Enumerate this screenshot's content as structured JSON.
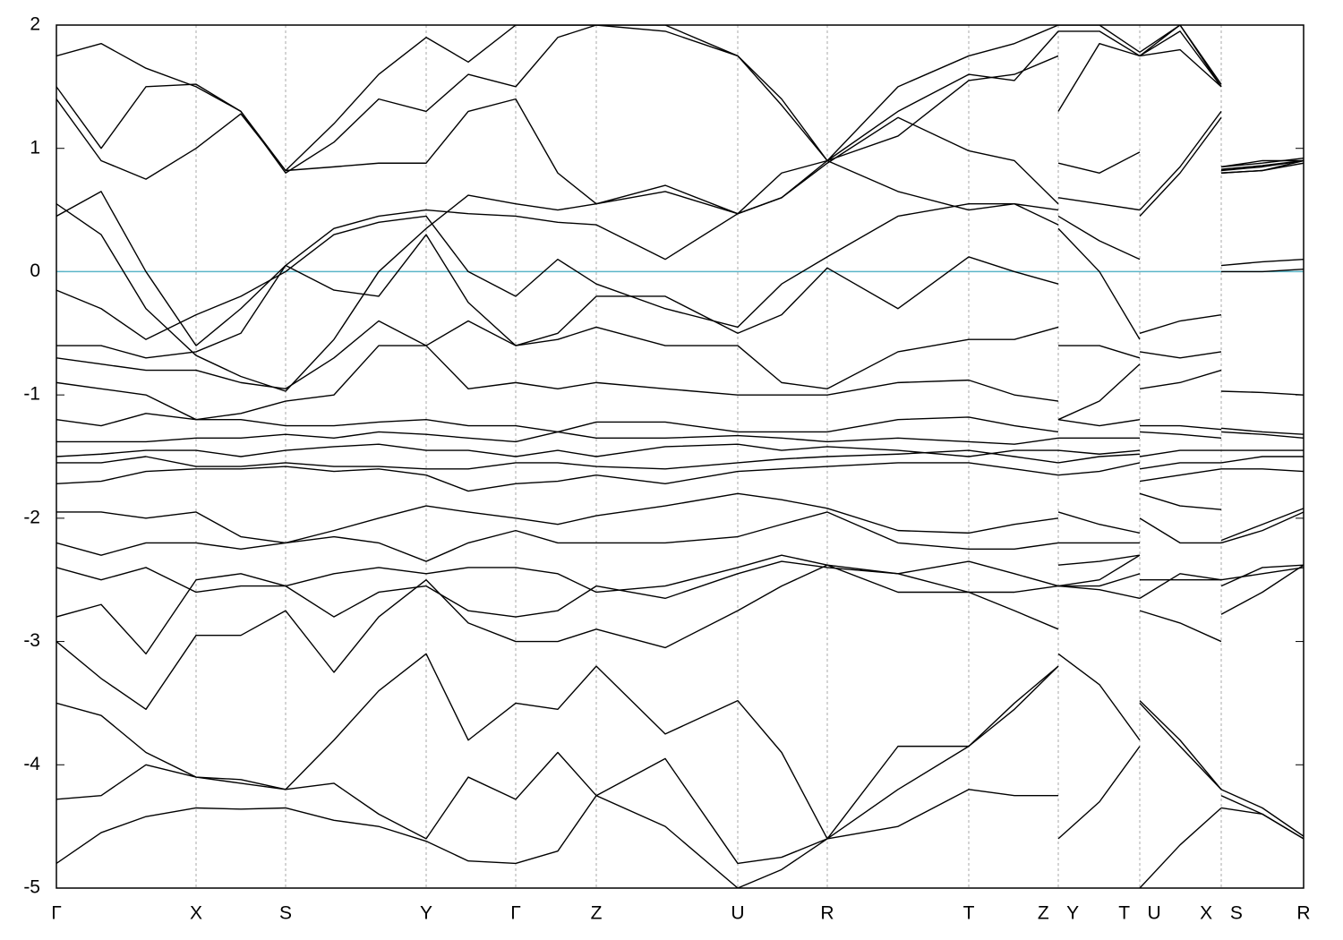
{
  "chart_data": {
    "type": "line",
    "x": [
      0,
      0.5,
      1.0,
      1.56,
      2.06,
      2.56,
      3.1,
      3.6,
      4.13,
      4.6,
      5.13,
      5.6,
      6.03,
      6.8,
      7.61,
      8.1,
      8.61,
      9.4,
      10.19,
      10.7,
      11.19,
      11.19,
      11.19,
      11.65,
      12.1,
      12.1,
      12.1,
      12.55,
      13.01,
      13.01,
      13.01,
      13.47,
      13.93
    ],
    "xlim": [
      0,
      13.93
    ],
    "ylim": [
      -5,
      2
    ],
    "yticks": [
      -5,
      -4,
      -3,
      -2,
      -1,
      0,
      1,
      2
    ],
    "xticks": [
      {
        "value": 0,
        "label": "Γ"
      },
      {
        "value": 1.56,
        "label": "X"
      },
      {
        "value": 2.56,
        "label": "S"
      },
      {
        "value": 4.13,
        "label": "Y"
      },
      {
        "value": 5.13,
        "label": "Γ"
      },
      {
        "value": 6.03,
        "label": "Z"
      },
      {
        "value": 7.61,
        "label": "U"
      },
      {
        "value": 8.61,
        "label": "R"
      },
      {
        "value": 10.19,
        "label": "T"
      },
      {
        "value": 11.19,
        "label": "Z Y"
      },
      {
        "value": 12.1,
        "label": "T U"
      },
      {
        "value": 13.01,
        "label": "X S"
      },
      {
        "value": 13.93,
        "label": "R"
      }
    ],
    "grid": true,
    "hline": {
      "value": 0,
      "color": "#5bb5c8"
    },
    "series": [
      {
        "color": "#000000",
        "values": [
          -4.8,
          -4.55,
          -4.42,
          -4.35,
          -4.36,
          -4.35,
          -4.45,
          -4.5,
          -4.62,
          -4.78,
          -4.8,
          -4.7,
          -4.25,
          -4.5,
          -5.0,
          -4.85,
          -4.6,
          -4.2,
          -3.85,
          -3.5,
          -3.2,
          null,
          -4.6,
          -4.3,
          -3.85,
          null,
          -5.0,
          -4.65,
          -4.35,
          null,
          -4.35,
          -4.4,
          -4.6
        ]
      },
      {
        "color": "#000000",
        "values": [
          -4.28,
          -4.25,
          -4.0,
          -4.1,
          -4.15,
          -4.2,
          -4.15,
          -4.4,
          -4.6,
          -4.1,
          -4.28,
          -3.9,
          -4.25,
          -3.95,
          -4.8,
          -4.75,
          -4.6,
          -4.5,
          -4.2,
          -4.25,
          -4.25,
          null,
          -3.1,
          -3.35,
          -3.8,
          null,
          -3.48,
          -3.8,
          -4.2,
          null,
          -4.2,
          -4.35,
          -4.58
        ]
      },
      {
        "color": "#000000",
        "values": [
          -3.5,
          -3.6,
          -3.9,
          -4.1,
          -4.12,
          -4.2,
          -3.8,
          -3.4,
          -3.1,
          -3.8,
          -3.5,
          -3.55,
          -3.2,
          -3.75,
          -3.48,
          -3.9,
          -4.6,
          -3.85,
          -3.85,
          -3.55,
          -3.2,
          null,
          -2.55,
          -2.55,
          -2.45,
          null,
          -3.5,
          -3.85,
          -4.2,
          null,
          -4.25,
          -4.4,
          -4.6
        ]
      },
      {
        "color": "#000000",
        "values": [
          -3.0,
          -3.3,
          -3.55,
          -2.95,
          -2.95,
          -2.75,
          -3.25,
          -2.8,
          -2.5,
          -2.85,
          -3.0,
          -3.0,
          -2.9,
          -3.05,
          -2.75,
          -2.55,
          -2.38,
          -2.6,
          -2.6,
          -2.75,
          -2.9,
          null,
          -2.38,
          -2.35,
          -2.3,
          null,
          -2.75,
          -2.85,
          -3.0,
          null,
          -2.78,
          -2.6,
          -2.38
        ]
      },
      {
        "color": "#000000",
        "values": [
          -2.8,
          -2.7,
          -3.1,
          -2.5,
          -2.45,
          -2.55,
          -2.8,
          -2.6,
          -2.55,
          -2.75,
          -2.8,
          -2.75,
          -2.55,
          -2.65,
          -2.45,
          -2.35,
          -2.4,
          -2.45,
          -2.35,
          -2.45,
          -2.55,
          null,
          -2.55,
          -2.5,
          -2.3,
          null,
          -2.5,
          -2.5,
          -2.5,
          null,
          -2.55,
          -2.4,
          -2.38
        ]
      },
      {
        "color": "#000000",
        "values": [
          -2.4,
          -2.5,
          -2.4,
          -2.6,
          -2.55,
          -2.55,
          -2.45,
          -2.4,
          -2.45,
          -2.4,
          -2.4,
          -2.45,
          -2.6,
          -2.55,
          -2.4,
          -2.3,
          -2.38,
          -2.45,
          -2.6,
          -2.6,
          -2.55,
          null,
          -2.55,
          -2.58,
          -2.65,
          null,
          -2.65,
          -2.45,
          -2.5,
          null,
          -2.5,
          -2.45,
          -2.4
        ]
      },
      {
        "color": "#000000",
        "values": [
          -2.2,
          -2.3,
          -2.2,
          -2.2,
          -2.25,
          -2.2,
          -2.15,
          -2.2,
          -2.35,
          -2.2,
          -2.1,
          -2.2,
          -2.2,
          -2.2,
          -2.15,
          -2.05,
          -1.95,
          -2.2,
          -2.25,
          -2.25,
          -2.2,
          null,
          -2.2,
          -2.2,
          -2.2,
          null,
          -2.0,
          -2.2,
          -2.2,
          null,
          -2.2,
          -2.1,
          -1.95
        ]
      },
      {
        "color": "#000000",
        "values": [
          -1.95,
          -1.95,
          -2.0,
          -1.95,
          -2.15,
          -2.2,
          -2.1,
          -2.0,
          -1.9,
          -1.95,
          -2.0,
          -2.05,
          -1.98,
          -1.9,
          -1.8,
          -1.85,
          -1.92,
          -2.1,
          -2.12,
          -2.05,
          -2.0,
          null,
          -1.95,
          -2.05,
          -2.12,
          null,
          -1.8,
          -1.9,
          -1.93,
          null,
          -2.18,
          -2.05,
          -1.92
        ]
      },
      {
        "color": "#000000",
        "values": [
          -1.72,
          -1.7,
          -1.62,
          -1.6,
          -1.6,
          -1.58,
          -1.62,
          -1.6,
          -1.65,
          -1.78,
          -1.72,
          -1.7,
          -1.65,
          -1.72,
          -1.62,
          -1.6,
          -1.58,
          -1.55,
          -1.55,
          -1.6,
          -1.65,
          null,
          -1.65,
          -1.62,
          -1.55,
          null,
          -1.7,
          -1.65,
          -1.6,
          null,
          -1.6,
          -1.6,
          -1.62
        ]
      },
      {
        "color": "#000000",
        "values": [
          -1.55,
          -1.55,
          -1.5,
          -1.58,
          -1.58,
          -1.55,
          -1.58,
          -1.58,
          -1.6,
          -1.6,
          -1.55,
          -1.55,
          -1.58,
          -1.6,
          -1.55,
          -1.52,
          -1.5,
          -1.48,
          -1.45,
          -1.5,
          -1.55,
          null,
          -1.55,
          -1.5,
          -1.48,
          null,
          -1.6,
          -1.55,
          -1.55,
          null,
          -1.55,
          -1.5,
          -1.5
        ]
      },
      {
        "color": "#000000",
        "values": [
          -1.5,
          -1.48,
          -1.45,
          -1.45,
          -1.5,
          -1.45,
          -1.42,
          -1.4,
          -1.45,
          -1.45,
          -1.5,
          -1.45,
          -1.5,
          -1.42,
          -1.4,
          -1.45,
          -1.42,
          -1.45,
          -1.5,
          -1.45,
          -1.45,
          null,
          -1.45,
          -1.48,
          -1.45,
          null,
          -1.5,
          -1.45,
          -1.45,
          null,
          -1.45,
          -1.45,
          -1.45
        ]
      },
      {
        "color": "#000000",
        "values": [
          -1.38,
          -1.38,
          -1.38,
          -1.35,
          -1.35,
          -1.32,
          -1.35,
          -1.3,
          -1.32,
          -1.35,
          -1.38,
          -1.3,
          -1.35,
          -1.35,
          -1.33,
          -1.35,
          -1.38,
          -1.35,
          -1.38,
          -1.4,
          -1.35,
          null,
          -1.35,
          -1.35,
          -1.35,
          null,
          -1.3,
          -1.32,
          -1.35,
          null,
          -1.3,
          -1.32,
          -1.35
        ]
      },
      {
        "color": "#000000",
        "values": [
          -1.2,
          -1.25,
          -1.15,
          -1.2,
          -1.2,
          -1.25,
          -1.25,
          -1.22,
          -1.2,
          -1.25,
          -1.25,
          -1.3,
          -1.22,
          -1.22,
          -1.3,
          -1.3,
          -1.3,
          -1.2,
          -1.18,
          -1.25,
          -1.3,
          null,
          -1.2,
          -1.25,
          -1.2,
          null,
          -1.25,
          -1.25,
          -1.28,
          null,
          -1.27,
          -1.3,
          -1.32
        ]
      },
      {
        "color": "#000000",
        "values": [
          -0.9,
          -0.95,
          -1.0,
          -1.2,
          -1.15,
          -1.05,
          -1.0,
          -0.6,
          -0.6,
          -0.95,
          -0.9,
          -0.95,
          -0.9,
          -0.95,
          -1.0,
          -1.0,
          -1.0,
          -0.9,
          -0.88,
          -1.0,
          -1.05,
          null,
          -1.2,
          -1.05,
          -0.75,
          null,
          -0.95,
          -0.9,
          -0.8,
          null,
          -0.97,
          -0.98,
          -1.0
        ]
      },
      {
        "color": "#000000",
        "values": [
          -0.7,
          -0.75,
          -0.8,
          -0.8,
          -0.9,
          -0.95,
          -0.7,
          -0.4,
          -0.6,
          -0.4,
          -0.6,
          -0.55,
          -0.45,
          -0.6,
          -0.6,
          -0.9,
          -0.95,
          -0.65,
          -0.55,
          -0.55,
          -0.45,
          null,
          -0.6,
          -0.6,
          -0.7,
          null,
          -0.65,
          -0.7,
          -0.65,
          null,
          0.0,
          0.0,
          0.02
        ]
      },
      {
        "color": "#000000",
        "values": [
          -0.6,
          -0.6,
          -0.7,
          -0.65,
          -0.5,
          0.05,
          -0.15,
          -0.2,
          0.3,
          -0.25,
          -0.6,
          -0.5,
          -0.2,
          -0.2,
          -0.5,
          -0.35,
          0.03,
          -0.3,
          0.12,
          0.0,
          -0.1,
          null,
          0.35,
          0.0,
          -0.55,
          null,
          -0.5,
          -0.4,
          -0.35,
          null,
          0.05,
          0.08,
          0.1
        ]
      },
      {
        "color": "#000000",
        "values": [
          -0.15,
          -0.3,
          -0.55,
          -0.35,
          -0.2,
          0.0,
          0.3,
          0.4,
          0.45,
          0.0,
          -0.2,
          0.1,
          -0.1,
          -0.3,
          -0.45,
          -0.1,
          0.12,
          0.45,
          0.55,
          0.55,
          0.38,
          null,
          0.45,
          0.25,
          0.1,
          null,
          0.45,
          0.8,
          1.25,
          null,
          0.8,
          0.82,
          0.88
        ]
      },
      {
        "color": "#000000",
        "values": [
          0.45,
          0.65,
          0.0,
          -0.6,
          -0.3,
          0.05,
          0.35,
          0.45,
          0.5,
          0.47,
          0.45,
          0.4,
          0.38,
          0.1,
          0.47,
          0.8,
          0.9,
          0.65,
          0.5,
          0.55,
          0.5,
          null,
          0.6,
          0.55,
          0.5,
          null,
          0.5,
          0.85,
          1.3,
          null,
          0.82,
          0.85,
          0.9
        ]
      },
      {
        "color": "#000000",
        "values": [
          0.55,
          0.3,
          -0.3,
          -0.68,
          -0.85,
          -0.97,
          -0.55,
          0.0,
          0.35,
          0.62,
          0.55,
          0.5,
          0.55,
          0.65,
          0.47,
          0.6,
          0.9,
          1.1,
          1.55,
          1.6,
          1.75,
          null,
          0.88,
          0.8,
          0.97,
          null,
          1.75,
          1.8,
          1.5,
          null,
          0.8,
          0.82,
          0.9
        ]
      },
      {
        "color": "#000000",
        "values": [
          1.4,
          0.9,
          0.75,
          1.0,
          1.28,
          0.82,
          0.85,
          0.88,
          0.88,
          1.3,
          1.4,
          0.8,
          0.55,
          0.7,
          0.47,
          0.6,
          0.88,
          1.25,
          0.98,
          0.9,
          0.55,
          null,
          1.3,
          1.85,
          1.75,
          null,
          1.75,
          1.95,
          1.5,
          null,
          0.83,
          0.86,
          0.9
        ]
      },
      {
        "color": "#000000",
        "values": [
          1.5,
          1.0,
          1.5,
          1.52,
          1.3,
          0.8,
          1.05,
          1.4,
          1.3,
          1.6,
          1.5,
          1.9,
          2.0,
          1.95,
          1.75,
          1.4,
          0.9,
          1.3,
          1.6,
          1.55,
          1.95,
          null,
          1.95,
          1.95,
          1.75,
          null,
          1.75,
          2.0,
          1.5,
          null,
          0.85,
          0.88,
          0.92
        ]
      },
      {
        "color": "#000000",
        "values": [
          1.75,
          1.85,
          1.65,
          1.5,
          1.3,
          0.82,
          1.2,
          1.6,
          1.9,
          1.7,
          2.0,
          2.0,
          2.0,
          2.0,
          1.75,
          1.35,
          0.9,
          1.5,
          1.75,
          1.85,
          2.0,
          null,
          2.0,
          2.0,
          1.78,
          null,
          1.78,
          2.0,
          1.52,
          null,
          0.85,
          0.9,
          0.9
        ]
      }
    ]
  }
}
